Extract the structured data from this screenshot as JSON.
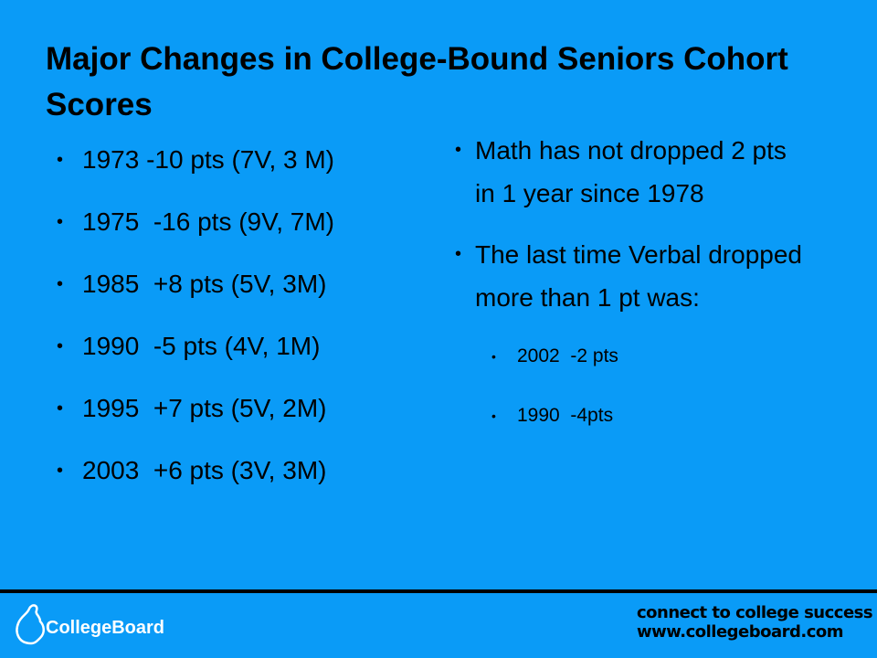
{
  "slide": {
    "title": "Major Changes in College-Bound Seniors Cohort Scores",
    "left_bullets": [
      "1973 -10 pts (7V, 3 M)",
      "1975  -16 pts (9V, 7M)",
      "1985  +8 pts (5V, 3M)",
      "1990  -5 pts (4V, 1M)",
      "1995  +7 pts (5V, 2M)",
      "2003  +6 pts (3V, 3M)"
    ],
    "right_bullets": [
      {
        "text": "Math has not dropped 2 pts in 1 year since 1978",
        "sub": []
      },
      {
        "text": "The last time Verbal dropped more than 1 pt was:",
        "sub": [
          "2002  -2 pts",
          "1990  -4pts"
        ]
      }
    ]
  },
  "footer": {
    "logo": "CollegeBoard",
    "tagline": "connect to college success",
    "url": "www.collegeboard.com"
  }
}
